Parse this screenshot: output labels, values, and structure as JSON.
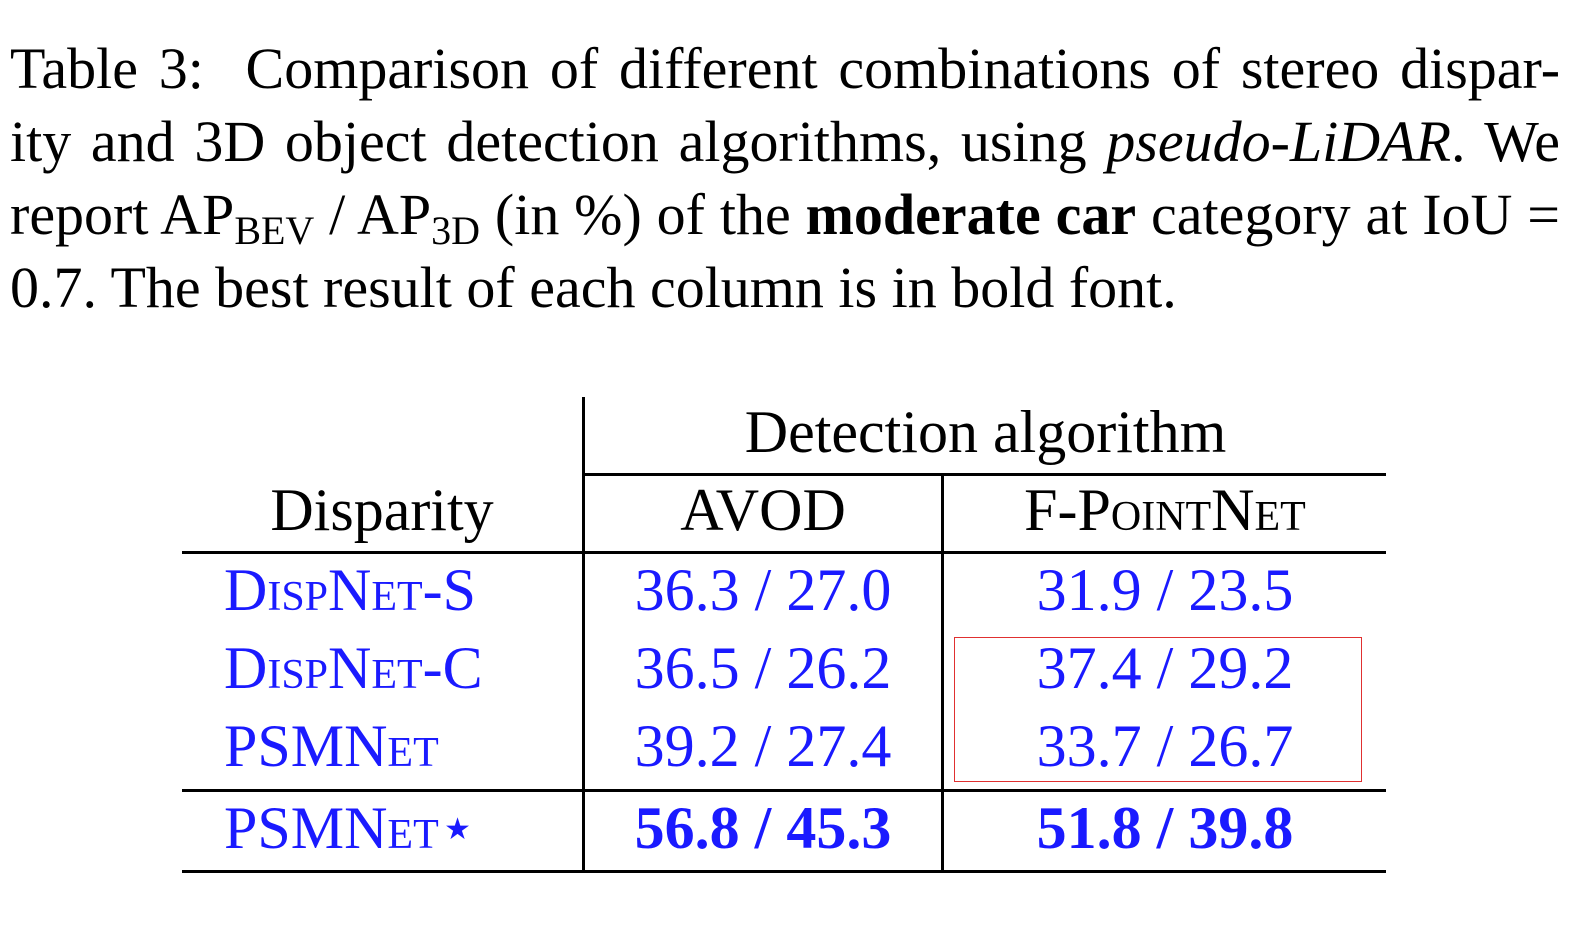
{
  "caption": {
    "label": "Table 3:",
    "text_1": "Comparison of different combinations of stereo dispar-ity and 3D object detection algorithms, using",
    "italic": "pseudo-LiDAR",
    "text_2": ". We report AP",
    "sub_bev": "BEV",
    "text_3": " / AP",
    "sub_3d": "3D",
    "text_4": " (in %) of the",
    "bold": "moderate car",
    "text_5": "category at IoU = 0.7. The best result of each column is in bold font."
  },
  "table": {
    "group_header": "Detection algorithm",
    "col_disparity": "Disparity",
    "col_avod": "AVOD",
    "col_fpointnet": "F-PointNet",
    "rows": [
      {
        "name": "DispNet-S",
        "avod": "36.3 / 27.0",
        "fpointnet": "31.9 / 23.5"
      },
      {
        "name": "DispNet-C",
        "avod": "36.5 / 26.2",
        "fpointnet": "37.4 / 29.2"
      },
      {
        "name": "PSMNet",
        "avod": "39.2 / 27.4",
        "fpointnet": "33.7 / 26.7"
      },
      {
        "name": "PSMNet⋆",
        "avod": "56.8 / 45.3",
        "fpointnet": "51.8 / 39.8"
      }
    ]
  },
  "colors": {
    "text": "#000000",
    "link_blue": "#1a1aff",
    "highlight_box": "#e03030"
  }
}
